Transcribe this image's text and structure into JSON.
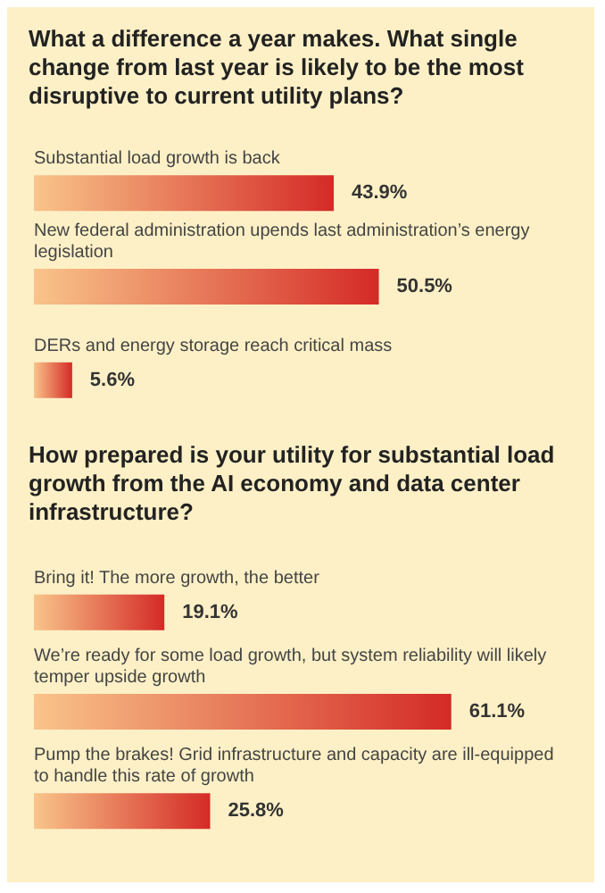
{
  "chart_data": [
    {
      "type": "bar",
      "orientation": "horizontal",
      "title": "What a difference a year makes. What single change from last year is likely to be the most disruptive to current utility plans?",
      "categories": [
        "Substantial load growth is back",
        "New federal administration upends last administration’s energy legislation",
        "DERs and energy storage reach critical mass"
      ],
      "values": [
        43.9,
        50.5,
        5.6
      ],
      "value_labels": [
        "43.9%",
        "50.5%",
        "5.6%"
      ],
      "color": "#d42a26"
    },
    {
      "type": "bar",
      "orientation": "horizontal",
      "title": "How prepared is your utility for substantial load growth from the AI economy and data center infrastructure?",
      "categories": [
        "Bring it! The more growth, the better",
        "We’re ready for some load growth, but system reliability will likely temper upside growth",
        "Pump the brakes! Grid infrastructure and capacity are ill-equipped to handle this rate of growth"
      ],
      "values": [
        19.1,
        61.1,
        25.8
      ],
      "value_labels": [
        "19.1%",
        "61.1%",
        "25.8%"
      ],
      "color": "#d42a26"
    }
  ]
}
